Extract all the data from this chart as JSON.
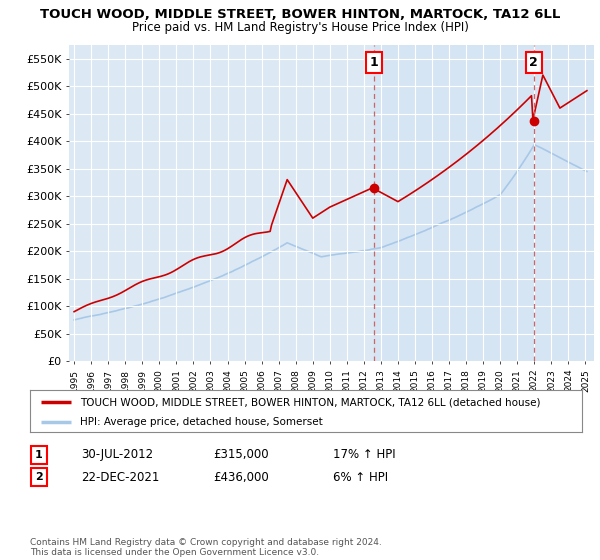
{
  "title": "TOUCH WOOD, MIDDLE STREET, BOWER HINTON, MARTOCK, TA12 6LL",
  "subtitle": "Price paid vs. HM Land Registry's House Price Index (HPI)",
  "background_color": "#dce9f5",
  "plot_bg_color": "#dce9f5",
  "line_color_property": "#cc0000",
  "line_color_hpi": "#a8c8e8",
  "vline_color": "#cc6666",
  "sale1_year_float": 2012.58,
  "sale1_price": 315000,
  "sale1_label": "1",
  "sale2_year_float": 2021.97,
  "sale2_price": 436000,
  "sale2_label": "2",
  "ylim": [
    0,
    575000
  ],
  "yticks": [
    0,
    50000,
    100000,
    150000,
    200000,
    250000,
    300000,
    350000,
    400000,
    450000,
    500000,
    550000
  ],
  "ytick_labels": [
    "£0",
    "£50K",
    "£100K",
    "£150K",
    "£200K",
    "£250K",
    "£300K",
    "£350K",
    "£400K",
    "£450K",
    "£500K",
    "£550K"
  ],
  "legend_label_property": "TOUCH WOOD, MIDDLE STREET, BOWER HINTON, MARTOCK, TA12 6LL (detached house)",
  "legend_label_hpi": "HPI: Average price, detached house, Somerset",
  "annotation1_date": "30-JUL-2012",
  "annotation1_price": "£315,000",
  "annotation1_hpi": "17% ↑ HPI",
  "annotation2_date": "22-DEC-2021",
  "annotation2_price": "£436,000",
  "annotation2_hpi": "6% ↑ HPI",
  "footer": "Contains HM Land Registry data © Crown copyright and database right 2024.\nThis data is licensed under the Open Government Licence v3.0."
}
